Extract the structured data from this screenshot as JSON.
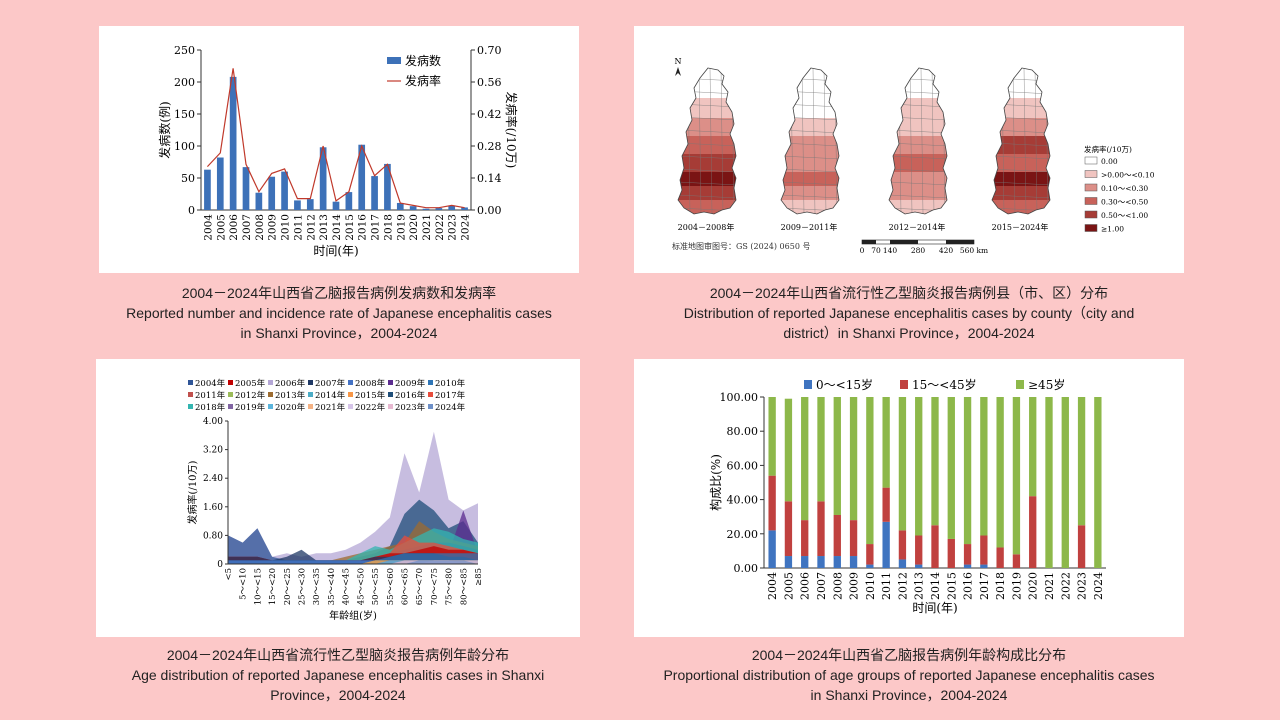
{
  "colors": {
    "background": "#fcc8c8",
    "bar_blue": "#3d71b8",
    "line_red": "#c0392b",
    "age_blue": "#3f74c0",
    "age_red": "#c0413f",
    "age_green": "#8db84a"
  },
  "captions": {
    "tl_cn": "2004－2024年山西省乙脑报告病例发病数和发病率",
    "tl_en1": "Reported number and incidence rate of Japanese encephalitis cases",
    "tl_en2": "in Shanxi Province，2004-2024",
    "tr_cn": "2004－2024年山西省流行性乙型脑炎报告病例县（市、区）分布",
    "tr_en1": "Distribution of reported Japanese encephalitis cases by county（city and",
    "tr_en2": "district）in Shanxi Province，2004-2024",
    "bl_cn": "2004－2024年山西省流行性乙型脑炎报告病例年龄分布",
    "bl_en1": "Age distribution of reported Japanese encephalitis cases in Shanxi",
    "bl_en2": "Province，2004-2024",
    "br_cn": "2004－2024年山西省乙脑报告病例年龄构成比分布",
    "br_en1": "Proportional distribution of age groups of reported Japanese encephalitis cases",
    "br_en2": "in Shanxi Province，2004-2024"
  },
  "map": {
    "north": "N",
    "periods": [
      "2004－2008年",
      "2009－2011年",
      "2012－2014年",
      "2015－2024年"
    ],
    "legend_title": "发病率(/10万)",
    "legend": [
      {
        "label": "0.00",
        "color": "#ffffff"
      },
      {
        "label": ">0.00～<0.10",
        "color": "#f0c4c0"
      },
      {
        "label": "0.10～<0.30",
        "color": "#dc8f88"
      },
      {
        "label": "0.30～<0.50",
        "color": "#c8625a"
      },
      {
        "label": "0.50～<1.00",
        "color": "#a63c36"
      },
      {
        "label": "≥1.00",
        "color": "#7a1414"
      }
    ],
    "approval": "标准地图审图号：GS (2024) 0650 号",
    "scale_labels": [
      "0",
      "70",
      "140",
      "280",
      "420",
      "560 km"
    ]
  },
  "chart_data": [
    {
      "type": "bar",
      "title": "2004－2024年山西省乙脑报告病例发病数和发病率",
      "categories": [
        "2004",
        "2005",
        "2006",
        "2007",
        "2008",
        "2009",
        "2010",
        "2011",
        "2012",
        "2013",
        "2014",
        "2015",
        "2016",
        "2017",
        "2018",
        "2019",
        "2020",
        "2021",
        "2022",
        "2023",
        "2024"
      ],
      "series": [
        {
          "name": "发病数",
          "axis": "left",
          "kind": "bar",
          "values": [
            63,
            82,
            208,
            67,
            27,
            52,
            60,
            15,
            17,
            98,
            13,
            28,
            102,
            53,
            72,
            11,
            6,
            2,
            3,
            7,
            4
          ]
        },
        {
          "name": "发病率",
          "axis": "right",
          "kind": "line",
          "values": [
            0.19,
            0.25,
            0.62,
            0.2,
            0.08,
            0.16,
            0.18,
            0.05,
            0.05,
            0.28,
            0.04,
            0.08,
            0.28,
            0.15,
            0.2,
            0.03,
            0.02,
            0.01,
            0.01,
            0.02,
            0.01
          ]
        }
      ],
      "xlabel": "时间(年)",
      "ylabel": "发病数(例)",
      "y2label": "发病率(/10万)",
      "ylim": [
        0,
        250
      ],
      "y2lim": [
        0,
        0.7
      ],
      "yticks": [
        "0",
        "50",
        "100",
        "150",
        "200",
        "250"
      ],
      "y2ticks": [
        "0.00",
        "0.14",
        "0.28",
        "0.42",
        "0.56",
        "0.70"
      ],
      "legend_position": "top-right"
    },
    {
      "type": "area",
      "title": "2004－2024年山西省流行性乙型脑炎报告病例年龄分布",
      "categories": [
        "<5",
        "5～<10",
        "10～<15",
        "15～<20",
        "20～<25",
        "25～<30",
        "30～<35",
        "35～<40",
        "40～<45",
        "45～<50",
        "50～<55",
        "55～<60",
        "60～<65",
        "65～<70",
        "70～<75",
        "75～<80",
        "80～<85",
        "≥85"
      ],
      "series": [
        {
          "name": "2004年",
          "color": "#2f5597",
          "values": [
            0.8,
            0.6,
            1.0,
            0.2,
            0.1,
            0.1,
            0.05,
            0.05,
            0.05,
            0.1,
            0.2,
            0.3,
            0.4,
            0.5,
            0.6,
            0.6,
            0.5,
            0.4
          ]
        },
        {
          "name": "2005年",
          "color": "#c00000",
          "values": [
            0.2,
            0.2,
            0.2,
            0.1,
            0.1,
            0.1,
            0.1,
            0.1,
            0.1,
            0.1,
            0.2,
            0.3,
            0.3,
            0.4,
            0.5,
            0.4,
            0.4,
            0.3
          ]
        },
        {
          "name": "2006年",
          "color": "#b4a7d6",
          "values": [
            0.8,
            0.6,
            1.0,
            0.2,
            0.3,
            0.2,
            0.3,
            0.3,
            0.4,
            0.6,
            0.9,
            1.3,
            3.1,
            2.0,
            3.7,
            1.8,
            1.5,
            1.7
          ]
        },
        {
          "name": "2007年",
          "color": "#1f3864",
          "values": [
            0.2,
            0.2,
            0.2,
            0.1,
            0.2,
            0.4,
            0.1,
            0.1,
            0.1,
            0.1,
            0.2,
            0.2,
            0.3,
            0.3,
            0.3,
            0.2,
            0.2,
            0.1
          ]
        },
        {
          "name": "2008年",
          "color": "#4472c4",
          "values": [
            0.1,
            0.1,
            0.1,
            0.1,
            0.1,
            0.1,
            0.1,
            0.1,
            0.1,
            0.1,
            0.1,
            0.1,
            0.1,
            0.1,
            0.1,
            0.1,
            0.1,
            0.1
          ]
        },
        {
          "name": "2009年",
          "color": "#5b2c8f",
          "values": [
            0.1,
            0.1,
            0.1,
            0.1,
            0.1,
            0.1,
            0.1,
            0.1,
            0.1,
            0.1,
            0.1,
            0.2,
            0.3,
            0.3,
            0.4,
            0.3,
            1.5,
            0.3
          ]
        },
        {
          "name": "2010年",
          "color": "#2e75b6",
          "values": [
            0.1,
            0.1,
            0.1,
            0.1,
            0.1,
            0.1,
            0.1,
            0.1,
            0.1,
            0.1,
            0.1,
            0.2,
            0.3,
            0.3,
            0.3,
            0.3,
            0.3,
            0.3
          ]
        },
        {
          "name": "2011年",
          "color": "#c0504d",
          "values": [
            0.0,
            0.0,
            0.0,
            0.0,
            0.0,
            0.0,
            0.0,
            0.0,
            0.0,
            0.0,
            0.1,
            0.1,
            0.1,
            0.1,
            0.1,
            0.1,
            0.1,
            0.1
          ]
        },
        {
          "name": "2012年",
          "color": "#9bbb59",
          "values": [
            0.0,
            0.0,
            0.0,
            0.0,
            0.0,
            0.0,
            0.0,
            0.0,
            0.0,
            0.0,
            0.1,
            0.1,
            0.1,
            0.1,
            0.1,
            0.1,
            0.1,
            0.1
          ]
        },
        {
          "name": "2013年",
          "color": "#9c6b30",
          "values": [
            0.1,
            0.1,
            0.1,
            0.1,
            0.1,
            0.1,
            0.1,
            0.1,
            0.2,
            0.3,
            0.4,
            0.5,
            0.6,
            1.2,
            0.9,
            0.7,
            0.6,
            0.5
          ]
        },
        {
          "name": "2014年",
          "color": "#4bacc6",
          "values": [
            0.0,
            0.0,
            0.0,
            0.0,
            0.0,
            0.0,
            0.0,
            0.0,
            0.0,
            0.0,
            0.1,
            0.1,
            0.1,
            0.1,
            0.1,
            0.1,
            0.1,
            0.1
          ]
        },
        {
          "name": "2015年",
          "color": "#f79646",
          "values": [
            0.0,
            0.0,
            0.0,
            0.0,
            0.0,
            0.0,
            0.0,
            0.0,
            0.0,
            0.0,
            0.1,
            0.1,
            0.1,
            0.1,
            0.1,
            0.1,
            0.1,
            0.1
          ]
        },
        {
          "name": "2016年",
          "color": "#1f4e79",
          "values": [
            0.1,
            0.1,
            0.1,
            0.1,
            0.1,
            0.1,
            0.1,
            0.1,
            0.1,
            0.2,
            0.3,
            0.5,
            1.4,
            1.8,
            1.5,
            1.0,
            1.2,
            0.6
          ]
        },
        {
          "name": "2017年",
          "color": "#e74c3c",
          "values": [
            0.0,
            0.0,
            0.0,
            0.0,
            0.0,
            0.0,
            0.0,
            0.0,
            0.1,
            0.1,
            0.2,
            0.3,
            0.8,
            0.6,
            0.6,
            0.5,
            0.4,
            0.3
          ]
        },
        {
          "name": "2018年",
          "color": "#33b5b0",
          "values": [
            0.1,
            0.1,
            0.1,
            0.1,
            0.1,
            0.1,
            0.1,
            0.1,
            0.1,
            0.3,
            0.5,
            0.4,
            0.6,
            0.8,
            1.0,
            0.9,
            0.7,
            0.6
          ]
        },
        {
          "name": "2019年",
          "color": "#8064a2",
          "values": [
            0.0,
            0.0,
            0.0,
            0.0,
            0.0,
            0.0,
            0.0,
            0.0,
            0.0,
            0.0,
            0.0,
            0.1,
            0.1,
            0.1,
            0.1,
            0.1,
            0.1,
            0.1
          ]
        },
        {
          "name": "2020年",
          "color": "#5ab4dc",
          "values": [
            0.0,
            0.0,
            0.0,
            0.0,
            0.0,
            0.0,
            0.0,
            0.0,
            0.0,
            0.0,
            0.0,
            0.1,
            0.1,
            0.1,
            0.1,
            0.1,
            0.1,
            0.1
          ]
        },
        {
          "name": "2021年",
          "color": "#f4b183",
          "values": [
            0.0,
            0.0,
            0.0,
            0.0,
            0.0,
            0.0,
            0.0,
            0.0,
            0.0,
            0.0,
            0.0,
            0.0,
            0.0,
            0.0,
            0.1,
            0.1,
            0.1,
            0.0
          ]
        },
        {
          "name": "2022年",
          "color": "#d5c4e8",
          "values": [
            0.0,
            0.0,
            0.0,
            0.0,
            0.0,
            0.0,
            0.0,
            0.0,
            0.0,
            0.0,
            0.0,
            0.0,
            0.0,
            0.0,
            0.1,
            0.1,
            0.0,
            0.0
          ]
        },
        {
          "name": "2023年",
          "color": "#e6b8d0",
          "values": [
            0.0,
            0.0,
            0.0,
            0.0,
            0.0,
            0.0,
            0.0,
            0.0,
            0.0,
            0.0,
            0.0,
            0.0,
            0.1,
            0.1,
            0.1,
            0.1,
            0.1,
            0.1
          ]
        },
        {
          "name": "2024年",
          "color": "#6d8fc7",
          "values": [
            0.0,
            0.0,
            0.0,
            0.0,
            0.0,
            0.0,
            0.0,
            0.0,
            0.0,
            0.0,
            0.0,
            0.0,
            0.0,
            0.1,
            0.1,
            0.1,
            0.1,
            0.0
          ]
        }
      ],
      "xlabel": "年龄组(岁)",
      "ylabel": "发病率(/10万)",
      "ylim": [
        0,
        4.0
      ],
      "yticks": [
        "0",
        "0.80",
        "1.60",
        "2.40",
        "3.20",
        "4.00"
      ],
      "legend_position": "top"
    },
    {
      "type": "bar",
      "stacked": true,
      "title": "2004－2024年山西省乙脑报告病例年龄构成比分布",
      "categories": [
        "2004",
        "2005",
        "2006",
        "2007",
        "2008",
        "2009",
        "2010",
        "2011",
        "2012",
        "2013",
        "2014",
        "2015",
        "2016",
        "2017",
        "2018",
        "2019",
        "2020",
        "2021",
        "2022",
        "2023",
        "2024"
      ],
      "series": [
        {
          "name": "0～<15岁",
          "values": [
            22,
            7,
            7,
            7,
            7,
            7,
            2,
            27,
            5,
            2,
            0,
            0,
            2,
            2,
            0,
            0,
            0,
            0,
            0,
            0,
            0
          ]
        },
        {
          "name": "15～<45岁",
          "values": [
            32,
            32,
            21,
            32,
            24,
            21,
            12,
            20,
            17,
            17,
            25,
            17,
            12,
            17,
            12,
            8,
            42,
            0,
            0,
            25,
            0
          ]
        },
        {
          "name": "≥45岁",
          "values": [
            46,
            60,
            72,
            61,
            69,
            72,
            86,
            53,
            78,
            81,
            75,
            83,
            86,
            81,
            88,
            92,
            58,
            100,
            100,
            75,
            100
          ]
        }
      ],
      "xlabel": "时间(年)",
      "ylabel": "构成比(%)",
      "ylim": [
        0,
        100
      ],
      "yticks": [
        "0.00",
        "20.00",
        "40.00",
        "60.00",
        "80.00",
        "100.00"
      ],
      "legend_position": "top"
    }
  ]
}
